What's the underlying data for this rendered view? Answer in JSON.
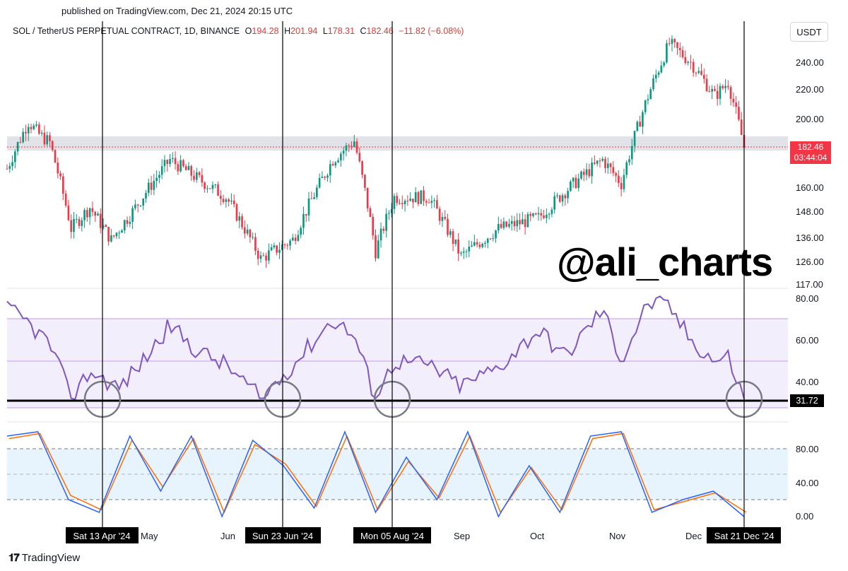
{
  "published": "published on TradingView.com, Dec 21, 2024 20:15 UTC",
  "legend": {
    "symbol": "SOL / TetherUS PERPETUAL CONTRACT, 1D, BINANCE",
    "o_label": "O",
    "o": "194.28",
    "h_label": "H",
    "h": "201.94",
    "l_label": "L",
    "l": "178.31",
    "c_label": "C",
    "c": "182.46",
    "change": "−11.82 (−6.08%)"
  },
  "unit": "USDT",
  "watermark": "@ali_charts",
  "last_price": "182.46",
  "countdown": "03:44:04",
  "rsi_value": "31.72",
  "footer": "TradingView",
  "colors": {
    "up": "#089981",
    "down": "#f23645",
    "rsi": "#7e57c2",
    "rsi_band": "#f3eefb",
    "stoch_band": "#e8f4fd",
    "stoch_k": "#2962ff",
    "stoch_d": "#ff6d00",
    "support_zone": "#d1d4dc"
  },
  "chart_data": [
    {
      "type": "candlestick",
      "title": "SOL / TetherUS PERPETUAL CONTRACT, 1D, BINANCE",
      "ylim": [
        117,
        260
      ],
      "y_scale": "log",
      "y_ticks": [
        "117.00",
        "126.00",
        "136.00",
        "148.00",
        "160.00",
        "182.46",
        "200.00",
        "220.00",
        "240.00"
      ],
      "x_ticks": [
        "May",
        "Jun",
        "Sep",
        "Oct",
        "Nov",
        "Dec"
      ],
      "support_zone": [
        182,
        189
      ],
      "close_points": [
        {
          "x": "Mar 20 '24",
          "y": 170
        },
        {
          "x": "Mar 28 '24",
          "y": 198
        },
        {
          "x": "Apr 01 '24",
          "y": 190
        },
        {
          "x": "Apr 05 '24",
          "y": 185
        },
        {
          "x": "Apr 13 '24",
          "y": 140
        },
        {
          "x": "Apr 20 '24",
          "y": 150
        },
        {
          "x": "Apr 28 '24",
          "y": 135
        },
        {
          "x": "May 06 '24",
          "y": 148
        },
        {
          "x": "May 20 '24",
          "y": 175
        },
        {
          "x": "May 30 '24",
          "y": 165
        },
        {
          "x": "Jun 10 '24",
          "y": 155
        },
        {
          "x": "Jun 23 '24",
          "y": 127
        },
        {
          "x": "Jul 05 '24",
          "y": 135
        },
        {
          "x": "Jul 20 '24",
          "y": 175
        },
        {
          "x": "Jul 28 '24",
          "y": 186
        },
        {
          "x": "Aug 05 '24",
          "y": 130
        },
        {
          "x": "Aug 12 '24",
          "y": 155
        },
        {
          "x": "Aug 25 '24",
          "y": 155
        },
        {
          "x": "Sep 06 '24",
          "y": 128
        },
        {
          "x": "Sep 20 '24",
          "y": 140
        },
        {
          "x": "Oct 05 '24",
          "y": 145
        },
        {
          "x": "Oct 15 '24",
          "y": 158
        },
        {
          "x": "Oct 29 '24",
          "y": 175
        },
        {
          "x": "Nov 05 '24",
          "y": 162
        },
        {
          "x": "Nov 15 '24",
          "y": 215
        },
        {
          "x": "Nov 23 '24",
          "y": 255
        },
        {
          "x": "Dec 01 '24",
          "y": 240
        },
        {
          "x": "Dec 10 '24",
          "y": 215
        },
        {
          "x": "Dec 15 '24",
          "y": 225
        },
        {
          "x": "Dec 21 '24",
          "y": 182.46
        }
      ]
    },
    {
      "type": "line",
      "title": "RSI",
      "ylim": [
        20,
        90
      ],
      "y_ticks": [
        "40.00",
        "60.00",
        "80.00"
      ],
      "bands": [
        30,
        50,
        70
      ],
      "current": 31.72,
      "marked_lows": [
        "Sat 13 Apr '24",
        "Sun 23 Jun '24",
        "Mon 05 Aug '24",
        "Sat 21 Dec '24"
      ],
      "points": [
        {
          "x": "Mar 20 '24",
          "y": 75
        },
        {
          "x": "Mar 28 '24",
          "y": 68
        },
        {
          "x": "Apr 05 '24",
          "y": 58
        },
        {
          "x": "Apr 13 '24",
          "y": 32
        },
        {
          "x": "Apr 20 '24",
          "y": 45
        },
        {
          "x": "May 01 '24",
          "y": 37
        },
        {
          "x": "May 10 '24",
          "y": 50
        },
        {
          "x": "May 20 '24",
          "y": 67
        },
        {
          "x": "May 30 '24",
          "y": 55
        },
        {
          "x": "Jun 10 '24",
          "y": 48
        },
        {
          "x": "Jun 23 '24",
          "y": 32
        },
        {
          "x": "Jul 05 '24",
          "y": 48
        },
        {
          "x": "Jul 20 '24",
          "y": 70
        },
        {
          "x": "Jul 28 '24",
          "y": 62
        },
        {
          "x": "Aug 05 '24",
          "y": 32
        },
        {
          "x": "Aug 12 '24",
          "y": 50
        },
        {
          "x": "Aug 25 '24",
          "y": 48
        },
        {
          "x": "Sep 06 '24",
          "y": 38
        },
        {
          "x": "Sep 20 '24",
          "y": 47
        },
        {
          "x": "Oct 05 '24",
          "y": 65
        },
        {
          "x": "Oct 15 '24",
          "y": 52
        },
        {
          "x": "Oct 29 '24",
          "y": 75
        },
        {
          "x": "Nov 05 '24",
          "y": 50
        },
        {
          "x": "Nov 15 '24",
          "y": 78
        },
        {
          "x": "Nov 23 '24",
          "y": 76
        },
        {
          "x": "Dec 01 '24",
          "y": 60
        },
        {
          "x": "Dec 10 '24",
          "y": 50
        },
        {
          "x": "Dec 15 '24",
          "y": 52
        },
        {
          "x": "Dec 21 '24",
          "y": 31.72
        }
      ]
    },
    {
      "type": "line",
      "title": "Stoch RSI",
      "ylim": [
        -5,
        105
      ],
      "y_ticks": [
        "0.00",
        "40.00",
        "80.00"
      ],
      "bands": [
        20,
        50,
        80
      ],
      "series": [
        {
          "values": [
            95,
            100,
            20,
            5,
            95,
            30,
            95,
            0,
            90,
            60,
            10,
            100,
            5,
            70,
            20,
            100,
            0,
            60,
            5,
            95,
            100,
            5,
            20,
            30,
            0
          ]
        },
        {
          "values": [
            92,
            98,
            25,
            8,
            90,
            35,
            92,
            5,
            85,
            62,
            12,
            95,
            8,
            65,
            22,
            95,
            5,
            58,
            8,
            92,
            98,
            8,
            18,
            28,
            5
          ]
        }
      ]
    }
  ],
  "date_labels": {
    "apr": "Sat 13 Apr '24",
    "jun": "Sun 23 Jun '24",
    "aug": "Mon 05 Aug '24",
    "dec": "Sat 21 Dec '24"
  },
  "month_labels": {
    "may": "May",
    "jun": "Jun",
    "sep": "Sep",
    "oct": "Oct",
    "nov": "Nov",
    "dec": "Dec"
  }
}
